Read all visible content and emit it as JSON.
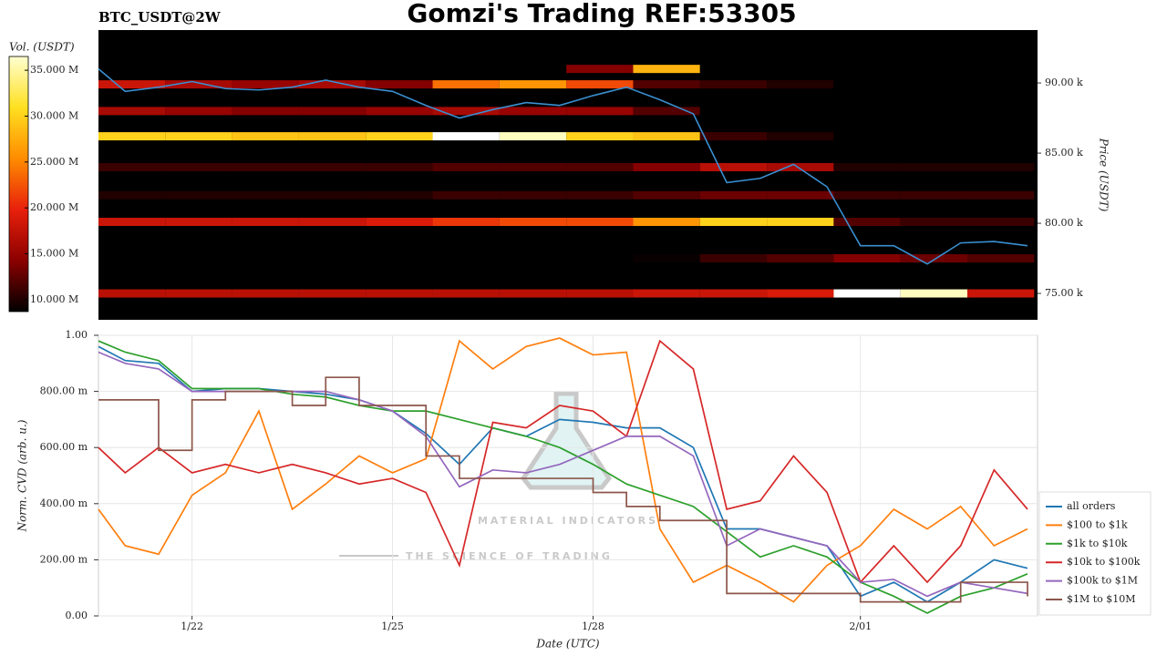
{
  "chart_data": [
    {
      "type": "heatmap",
      "title": "Gomzi's Trading REF:53305",
      "subtitle": "BTC_USDT@2W",
      "ylabel": "Price (USDT)",
      "xlim": [
        20.6,
        34.65
      ],
      "ylim": [
        73120,
        93770
      ],
      "yticks": [
        {
          "value": 75000,
          "label": "75.00 k"
        },
        {
          "value": 80000,
          "label": "80.00 k"
        },
        {
          "value": 85000,
          "label": "85.00 k"
        },
        {
          "value": 90000,
          "label": "90.00 k"
        }
      ],
      "colorbar": {
        "label": "Vol. (USDT)",
        "lim": [
          8700000.0,
          36500000.0
        ],
        "ticks": [
          {
            "value": 10000000.0,
            "label": "10.000 M"
          },
          {
            "value": 15000000.0,
            "label": "15.000 M"
          },
          {
            "value": 20000000.0,
            "label": "20.000 M"
          },
          {
            "value": 25000000.0,
            "label": "25.000 M"
          },
          {
            "value": 30000000.0,
            "label": "30.000 M"
          },
          {
            "value": 35000000.0,
            "label": "35.000 M"
          }
        ],
        "colormap": [
          "#000000",
          "#8b0000",
          "#e8200c",
          "#ff8c00",
          "#ffe020",
          "#ffffd0"
        ]
      },
      "x_edges": [
        20.6,
        21.6,
        22.6,
        23.6,
        24.6,
        25.6,
        26.6,
        27.6,
        28.6,
        29.6,
        30.6,
        31.6,
        32.6,
        33.6,
        34.6
      ],
      "levels": [
        91000,
        89900,
        88000,
        86200,
        84000,
        82000,
        80100,
        77500,
        75000
      ],
      "values": [
        [
          0,
          0,
          0,
          0,
          0,
          0,
          0,
          14000000.0,
          28000000.0,
          0,
          0,
          0,
          0,
          0
        ],
        [
          18000000.0,
          16000000.0,
          15000000.0,
          16000000.0,
          14000000.0,
          24000000.0,
          26000000.0,
          22000000.0,
          12000000.0,
          11000000.0,
          10000000.0,
          0,
          0,
          0
        ],
        [
          16000000.0,
          15000000.0,
          14000000.0,
          14000000.0,
          15000000.0,
          16000000.0,
          15000000.0,
          15000000.0,
          12000000.0,
          0,
          0,
          0,
          0,
          0
        ],
        [
          30000000.0,
          30000000.0,
          29000000.0,
          29000000.0,
          30000000.0,
          37000000.0,
          36000000.0,
          30000000.0,
          29000000.0,
          11000000.0,
          10000000.0,
          0,
          0,
          0
        ],
        [
          11000000.0,
          11000000.0,
          11000000.0,
          11000000.0,
          11000000.0,
          12000000.0,
          12000000.0,
          12000000.0,
          14000000.0,
          17000000.0,
          16000000.0,
          10000000.0,
          10000000.0,
          10000000.0
        ],
        [
          10000000.0,
          10000000.0,
          10000000.0,
          10000000.0,
          10000000.0,
          11000000.0,
          11000000.0,
          11000000.0,
          12000000.0,
          13000000.0,
          13000000.0,
          11000000.0,
          11000000.0,
          11000000.0
        ],
        [
          18000000.0,
          18000000.0,
          18000000.0,
          18000000.0,
          19000000.0,
          21000000.0,
          22000000.0,
          22000000.0,
          26000000.0,
          30000000.0,
          30000000.0,
          12000000.0,
          11000000.0,
          11000000.0
        ],
        [
          0,
          0,
          0,
          0,
          0,
          0,
          0,
          0,
          9000000.0,
          11000000.0,
          12000000.0,
          14000000.0,
          13000000.0,
          12000000.0
        ],
        [
          17000000.0,
          17000000.0,
          17000000.0,
          17000000.0,
          17000000.0,
          17000000.0,
          17000000.0,
          17000000.0,
          18000000.0,
          18000000.0,
          19000000.0,
          38000000.0,
          36000000.0,
          18000000.0
        ]
      ],
      "line": {
        "color": "#3a8fd0",
        "x": [
          20.6,
          21,
          21.5,
          22,
          22.5,
          23,
          23.5,
          24,
          24.5,
          25,
          25.5,
          26,
          26.5,
          27,
          27.5,
          28,
          28.5,
          29,
          29.5,
          30,
          30.5,
          31,
          31.5,
          32,
          32.5,
          33,
          33.5,
          34,
          34.5
        ],
        "values": [
          91000,
          89400,
          89700,
          90100,
          89600,
          89500,
          89700,
          90200,
          89700,
          89400,
          88400,
          87500,
          88100,
          88600,
          88400,
          89100,
          89700,
          88800,
          87800,
          82900,
          83200,
          84200,
          82600,
          78400,
          78400,
          77100,
          78600,
          78700,
          78400
        ]
      }
    },
    {
      "type": "line",
      "xlabel": "Date (UTC)",
      "ylabel": "Norm. CVD (arb. u.)",
      "watermark": [
        "MATERIAL INDICATORS",
        "THE SCIENCE OF TRADING"
      ],
      "grid": true,
      "legend": "right",
      "xlim": [
        20.6,
        34.65
      ],
      "xticks": [
        {
          "value": 22,
          "label": "1/22"
        },
        {
          "value": 25,
          "label": "1/25"
        },
        {
          "value": 28,
          "label": "1/28"
        },
        {
          "value": 32,
          "label": "2/01"
        }
      ],
      "ylim": [
        0,
        1
      ],
      "yticks": [
        {
          "value": 0,
          "label": "0.00"
        },
        {
          "value": 0.2,
          "label": "200.00 m"
        },
        {
          "value": 0.4,
          "label": "400.00 m"
        },
        {
          "value": 0.6,
          "label": "600.00 m"
        },
        {
          "value": 0.8,
          "label": "800.00 m"
        },
        {
          "value": 1,
          "label": "1.00"
        }
      ],
      "x": [
        20.6,
        21,
        21.5,
        22,
        22.5,
        23,
        23.5,
        24,
        24.5,
        25,
        25.5,
        26,
        26.5,
        27,
        27.5,
        28,
        28.5,
        29,
        29.5,
        30,
        30.5,
        31,
        31.5,
        32,
        32.5,
        33,
        33.5,
        34,
        34.5
      ],
      "series": [
        {
          "name": "all orders",
          "color": "#1f77b4",
          "values": [
            0.96,
            0.91,
            0.9,
            0.8,
            0.81,
            0.81,
            0.8,
            0.79,
            0.77,
            0.73,
            0.65,
            0.54,
            0.67,
            0.64,
            0.7,
            0.69,
            0.67,
            0.67,
            0.6,
            0.31,
            0.31,
            0.28,
            0.25,
            0.07,
            0.12,
            0.05,
            0.12,
            0.2,
            0.17
          ]
        },
        {
          "name": "$100 to $1k",
          "color": "#ff7f0e",
          "values": [
            0.38,
            0.25,
            0.22,
            0.43,
            0.51,
            0.73,
            0.38,
            0.47,
            0.57,
            0.51,
            0.56,
            0.98,
            0.88,
            0.96,
            0.99,
            0.93,
            0.94,
            0.31,
            0.12,
            0.18,
            0.12,
            0.05,
            0.18,
            0.25,
            0.38,
            0.31,
            0.39,
            0.25,
            0.31
          ]
        },
        {
          "name": "$1k to $10k",
          "color": "#2ca02c",
          "values": [
            0.98,
            0.94,
            0.91,
            0.81,
            0.81,
            0.81,
            0.79,
            0.78,
            0.75,
            0.73,
            0.73,
            0.7,
            0.67,
            0.64,
            0.6,
            0.54,
            0.47,
            0.43,
            0.39,
            0.3,
            0.21,
            0.25,
            0.21,
            0.12,
            0.07,
            0.01,
            0.07,
            0.1,
            0.15
          ]
        },
        {
          "name": "$10k to $100k",
          "color": "#d62728",
          "values": [
            0.6,
            0.51,
            0.6,
            0.51,
            0.54,
            0.51,
            0.54,
            0.51,
            0.47,
            0.49,
            0.44,
            0.18,
            0.69,
            0.67,
            0.75,
            0.73,
            0.64,
            0.98,
            0.88,
            0.38,
            0.41,
            0.57,
            0.44,
            0.12,
            0.25,
            0.12,
            0.25,
            0.52,
            0.38
          ]
        },
        {
          "name": "$100k to $1M",
          "color": "#9467bd",
          "values": [
            0.94,
            0.9,
            0.88,
            0.8,
            0.8,
            0.8,
            0.8,
            0.8,
            0.77,
            0.73,
            0.64,
            0.46,
            0.52,
            0.51,
            0.54,
            0.59,
            0.64,
            0.64,
            0.57,
            0.25,
            0.31,
            0.28,
            0.25,
            0.12,
            0.13,
            0.07,
            0.12,
            0.1,
            0.08
          ]
        },
        {
          "name": "$1M to $10M",
          "color": "#8c564b",
          "step": true,
          "values": [
            0.77,
            0.77,
            0.59,
            0.77,
            0.8,
            0.8,
            0.75,
            0.85,
            0.75,
            0.75,
            0.57,
            0.49,
            0.49,
            0.49,
            0.49,
            0.44,
            0.39,
            0.34,
            0.34,
            0.08,
            0.08,
            0.08,
            0.08,
            0.05,
            0.05,
            0.05,
            0.12,
            0.12,
            0.07
          ]
        }
      ]
    }
  ]
}
